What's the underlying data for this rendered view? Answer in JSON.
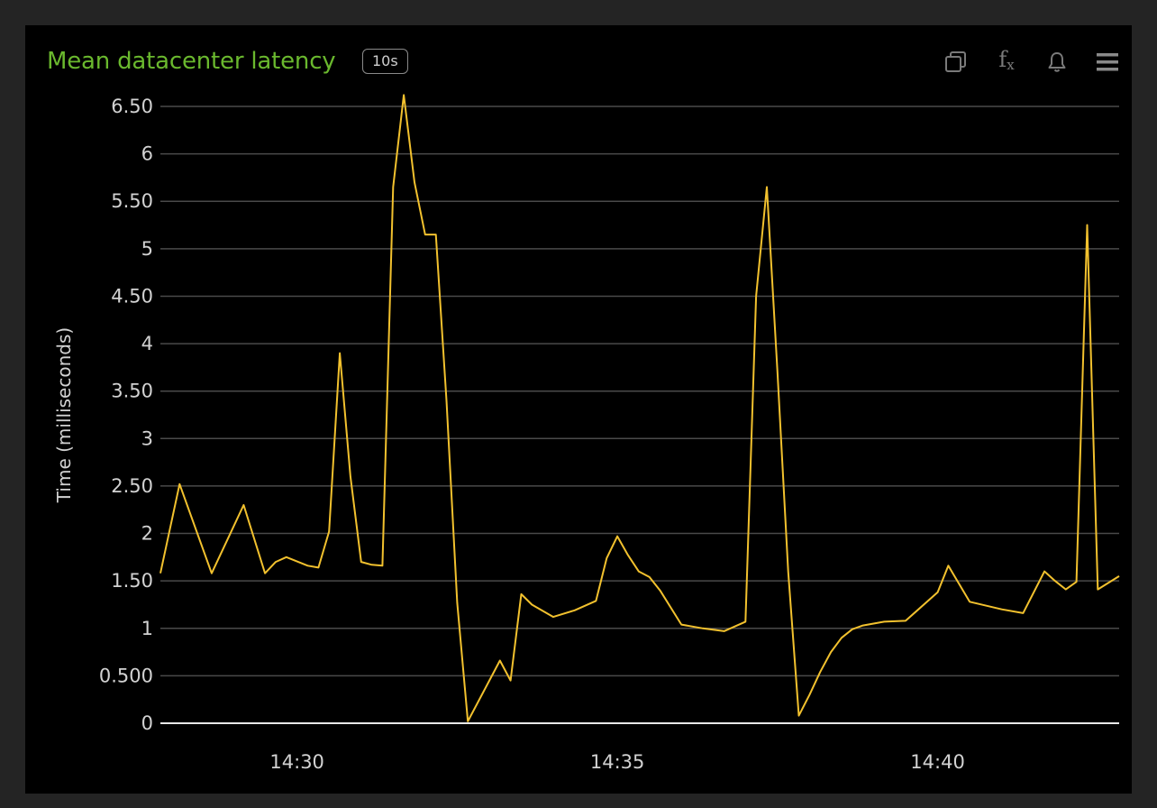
{
  "panel": {
    "title": "Mean datacenter latency",
    "interval_badge": "10s",
    "tools": {
      "duplicate": "duplicate-icon",
      "function": "function-icon",
      "alert": "bell-icon",
      "menu": "menu-icon"
    }
  },
  "colors": {
    "background": "#242424",
    "panel": "#000000",
    "title": "#6ab82e",
    "line": "#f2c12e",
    "grid": "#4a4a4a",
    "axis_text": "#d2d2d2"
  },
  "chart_data": {
    "type": "line",
    "title": "Mean datacenter latency",
    "xlabel": "",
    "ylabel": "Time (milliseconds)",
    "ylim": [
      0,
      6.5
    ],
    "yticks": [
      0,
      0.5,
      1,
      1.5,
      2,
      2.5,
      3,
      3.5,
      4,
      4.5,
      5,
      5.5,
      6,
      6.5
    ],
    "ytick_labels": [
      "0",
      "0.500",
      "1",
      "1.50",
      "2",
      "2.50",
      "3",
      "3.50",
      "4",
      "4.50",
      "5",
      "5.50",
      "6",
      "6.50"
    ],
    "xlim": [
      "14:27:52",
      "14:42:50"
    ],
    "xticks": [
      "14:30:00",
      "14:35:00",
      "14:40:00"
    ],
    "xtick_labels": [
      "14:30",
      "14:35",
      "14:40"
    ],
    "grid": true,
    "legend": "none",
    "series": [
      {
        "x": [
          "14:27:52",
          "14:28:10",
          "14:28:40",
          "14:29:10",
          "14:29:30",
          "14:29:40",
          "14:29:50",
          "14:30:10",
          "14:30:20",
          "14:30:30",
          "14:30:40",
          "14:30:50",
          "14:31:00",
          "14:31:10",
          "14:31:20",
          "14:31:30",
          "14:31:40",
          "14:31:50",
          "14:32:00",
          "14:32:10",
          "14:32:20",
          "14:32:30",
          "14:32:40",
          "14:33:10",
          "14:33:20",
          "14:33:30",
          "14:33:40",
          "14:34:00",
          "14:34:20",
          "14:34:40",
          "14:34:50",
          "14:35:00",
          "14:35:10",
          "14:35:20",
          "14:35:30",
          "14:35:40",
          "14:36:00",
          "14:36:20",
          "14:36:40",
          "14:37:00",
          "14:37:10",
          "14:37:20",
          "14:37:30",
          "14:37:40",
          "14:37:50",
          "14:38:00",
          "14:38:10",
          "14:38:20",
          "14:38:30",
          "14:38:40",
          "14:38:50",
          "14:39:10",
          "14:39:30",
          "14:40:00",
          "14:40:10",
          "14:40:30",
          "14:41:00",
          "14:41:20",
          "14:41:40",
          "14:41:50",
          "14:42:00",
          "14:42:10",
          "14:42:20",
          "14:42:30",
          "14:42:50"
        ],
        "y": [
          1.58,
          2.52,
          1.58,
          2.3,
          1.58,
          1.7,
          1.75,
          1.66,
          1.64,
          2.02,
          3.9,
          2.6,
          1.7,
          1.67,
          1.66,
          5.65,
          6.62,
          5.7,
          5.15,
          5.15,
          3.4,
          1.27,
          0.02,
          0.66,
          0.45,
          1.36,
          1.25,
          1.12,
          1.19,
          1.29,
          1.74,
          1.97,
          1.77,
          1.6,
          1.54,
          1.4,
          1.04,
          1.0,
          0.97,
          1.07,
          4.5,
          5.65,
          3.7,
          1.6,
          0.08,
          0.3,
          0.54,
          0.75,
          0.9,
          0.99,
          1.03,
          1.07,
          1.08,
          1.38,
          1.66,
          1.28,
          1.2,
          1.16,
          1.6,
          1.5,
          1.41,
          1.49,
          5.25,
          1.41,
          1.55
        ]
      }
    ]
  }
}
